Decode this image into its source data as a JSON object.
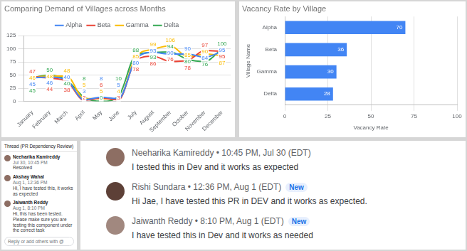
{
  "chart_data": [
    {
      "type": "line",
      "title": "Comparing Demand of Villages across Months",
      "categories": [
        "January",
        "February",
        "March",
        "April",
        "May",
        "June",
        "July",
        "August",
        "September",
        "October",
        "November",
        "December"
      ],
      "series": [
        {
          "name": "Alpha",
          "color": "#4285f4",
          "values": [
            45,
            46,
            40,
            3,
            8,
            5,
            80,
            93,
            90,
            90,
            84,
            95
          ]
        },
        {
          "name": "Beta",
          "color": "#ea4335",
          "values": [
            47,
            44,
            38,
            2,
            6,
            3,
            78,
            86,
            76,
            78,
            97,
            95
          ]
        },
        {
          "name": "Gamma",
          "color": "#fbbc04",
          "values": [
            46,
            48,
            48,
            5,
            5,
            4,
            85,
            99,
            106,
            85,
            90,
            87
          ]
        },
        {
          "name": "Delta",
          "color": "#34a853",
          "values": [
            45,
            50,
            40,
            8,
            0,
            10,
            88,
            93,
            94,
            80,
            76,
            100
          ]
        }
      ],
      "ylim": [
        0,
        125
      ],
      "yticks": [
        0,
        25,
        50,
        75,
        100,
        125
      ],
      "grid": true,
      "legend": "top",
      "data_labels": true
    },
    {
      "type": "bar",
      "orientation": "horizontal",
      "title": "Vacancy Rate by Village",
      "categories": [
        "Alpha",
        "Beta",
        "Gamma",
        "Delta"
      ],
      "values": [
        70,
        36,
        30,
        28
      ],
      "color": "#4285f4",
      "x_label": "Vacancy Rate",
      "y_label": "Village Name",
      "xlim": [
        0,
        100
      ],
      "xticks": [
        0,
        25,
        50,
        75,
        100
      ],
      "grid": true,
      "data_labels": true
    }
  ],
  "thread_panel": {
    "title": "Thread (PR Dependency Review)",
    "messages": [
      {
        "name": "Neeharika Kamireddy",
        "time": "Jul 30, 10:45 PM",
        "text": "Resolved"
      },
      {
        "name": "Akshay Wahal",
        "time": "Aug 1, 12:36 PM",
        "text": "Hi, I have tested this, it works as expected"
      },
      {
        "name": "Jaiwanth Reddy",
        "time": "Aug 1, 8:10 PM",
        "text": "Hi, this has been tested. Please make sure you are testing this component under the correct task"
      }
    ],
    "reply_placeholder": "Reply or add others with @"
  },
  "comment_panel": {
    "separator": "•",
    "comments": [
      {
        "name": "Neeharika Kamireddy",
        "time": "10:45 PM, Jul 30 (EDT)",
        "text": "I tested this in Dev and it works as expected"
      },
      {
        "name": "Rishi Sundara",
        "time": "12:36 PM, Aug 1 (EDT)",
        "badge": "New",
        "text": "Hi Jae, I have tested this PR in DEV and it works as expected."
      },
      {
        "name": "Jaiwanth Reddy",
        "time": "8:10 PM, Aug 1 (EDT)",
        "badge": "New",
        "text": "I have tested this in Dev and it works as needed"
      }
    ]
  }
}
